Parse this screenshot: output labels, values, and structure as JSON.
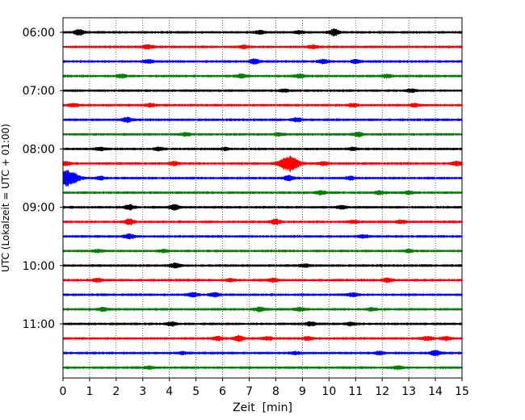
{
  "chart_data": {
    "type": "line",
    "title": "",
    "xlabel": "Zeit  [min]",
    "ylabel": "UTC (Lokalzeit = UTC + 01:00)",
    "xlim": [
      0,
      15
    ],
    "x_ticks": [
      0,
      1,
      2,
      3,
      4,
      5,
      6,
      7,
      8,
      9,
      10,
      11,
      12,
      13,
      14,
      15
    ],
    "x_tick_labels": [
      "0",
      "1",
      "2",
      "3",
      "4",
      "5",
      "6",
      "7",
      "8",
      "9",
      "10",
      "11",
      "12",
      "13",
      "14",
      "15"
    ],
    "y_tick_labels": [
      "06:00",
      "07:00",
      "08:00",
      "09:00",
      "10:00",
      "11:00"
    ],
    "grid": "vertical dotted at each minute",
    "trace_colors": [
      "#000000",
      "#ff0000",
      "#0000ff",
      "#008000"
    ],
    "trace_minutes": 15,
    "traces": [
      {
        "start": "06:00",
        "color": "#000000",
        "events": [
          {
            "t": 0.6,
            "amp": 0.5
          },
          {
            "t": 10.2,
            "amp": 0.6
          },
          {
            "t": 7.4,
            "amp": 0.3
          },
          {
            "t": 8.9,
            "amp": 0.25
          }
        ]
      },
      {
        "start": "06:15",
        "color": "#ff0000",
        "events": [
          {
            "t": 3.2,
            "amp": 0.35
          },
          {
            "t": 9.4,
            "amp": 0.3
          },
          {
            "t": 6.8,
            "amp": 0.25
          }
        ]
      },
      {
        "start": "06:30",
        "color": "#0000ff",
        "events": [
          {
            "t": 3.2,
            "amp": 0.3
          },
          {
            "t": 7.2,
            "amp": 0.45
          },
          {
            "t": 9.8,
            "amp": 0.35
          },
          {
            "t": 11.0,
            "amp": 0.3
          }
        ]
      },
      {
        "start": "06:45",
        "color": "#008000",
        "events": [
          {
            "t": 2.2,
            "amp": 0.3
          },
          {
            "t": 6.7,
            "amp": 0.35
          },
          {
            "t": 8.9,
            "amp": 0.3
          },
          {
            "t": 12.2,
            "amp": 0.3
          }
        ]
      },
      {
        "start": "07:00",
        "color": "#000000",
        "events": [
          {
            "t": 8.3,
            "amp": 0.25
          },
          {
            "t": 13.1,
            "amp": 0.25
          }
        ]
      },
      {
        "start": "07:15",
        "color": "#ff0000",
        "events": [
          {
            "t": 0.4,
            "amp": 0.3
          },
          {
            "t": 3.3,
            "amp": 0.3
          },
          {
            "t": 10.9,
            "amp": 0.25
          },
          {
            "t": 13.2,
            "amp": 0.3
          }
        ]
      },
      {
        "start": "07:30",
        "color": "#0000ff",
        "events": [
          {
            "t": 2.4,
            "amp": 0.45
          },
          {
            "t": 8.8,
            "amp": 0.3
          }
        ]
      },
      {
        "start": "07:45",
        "color": "#008000",
        "events": [
          {
            "t": 4.6,
            "amp": 0.3
          },
          {
            "t": 8.1,
            "amp": 0.25
          },
          {
            "t": 11.1,
            "amp": 0.35
          }
        ]
      },
      {
        "start": "08:00",
        "color": "#000000",
        "events": [
          {
            "t": 1.4,
            "amp": 0.3
          },
          {
            "t": 3.6,
            "amp": 0.25
          },
          {
            "t": 6.1,
            "amp": 0.25
          },
          {
            "t": 10.9,
            "amp": 0.25
          }
        ]
      },
      {
        "start": "08:15",
        "color": "#ff0000",
        "events": [
          {
            "t": 8.5,
            "amp": 1.4
          },
          {
            "t": 0.1,
            "amp": 0.3
          },
          {
            "t": 4.2,
            "amp": 0.3
          },
          {
            "t": 9.8,
            "amp": 0.3
          },
          {
            "t": 14.8,
            "amp": 0.35
          }
        ]
      },
      {
        "start": "08:30",
        "color": "#0000ff",
        "events": [
          {
            "t": 0.2,
            "amp": 1.6
          },
          {
            "t": 1.4,
            "amp": 0.3
          },
          {
            "t": 8.5,
            "amp": 0.45
          },
          {
            "t": 10.8,
            "amp": 0.3
          }
        ]
      },
      {
        "start": "08:45",
        "color": "#008000",
        "events": [
          {
            "t": 9.7,
            "amp": 0.3
          },
          {
            "t": 11.9,
            "amp": 0.3
          },
          {
            "t": 13.0,
            "amp": 0.25
          }
        ]
      },
      {
        "start": "09:00",
        "color": "#000000",
        "events": [
          {
            "t": 2.5,
            "amp": 0.45
          },
          {
            "t": 4.2,
            "amp": 0.5
          },
          {
            "t": 10.5,
            "amp": 0.3
          }
        ]
      },
      {
        "start": "09:15",
        "color": "#ff0000",
        "events": [
          {
            "t": 2.5,
            "amp": 0.5
          },
          {
            "t": 8.0,
            "amp": 0.5
          },
          {
            "t": 12.7,
            "amp": 0.3
          },
          {
            "t": 10.9,
            "amp": 0.25
          }
        ]
      },
      {
        "start": "09:30",
        "color": "#0000ff",
        "events": [
          {
            "t": 2.5,
            "amp": 0.45
          },
          {
            "t": 11.3,
            "amp": 0.25
          }
        ]
      },
      {
        "start": "09:45",
        "color": "#008000",
        "events": [
          {
            "t": 1.3,
            "amp": 0.25
          },
          {
            "t": 3.8,
            "amp": 0.25
          },
          {
            "t": 13.0,
            "amp": 0.25
          }
        ]
      },
      {
        "start": "10:00",
        "color": "#000000",
        "events": [
          {
            "t": 4.2,
            "amp": 0.45
          },
          {
            "t": 9.1,
            "amp": 0.25
          }
        ]
      },
      {
        "start": "10:15",
        "color": "#ff0000",
        "events": [
          {
            "t": 1.3,
            "amp": 0.3
          },
          {
            "t": 6.3,
            "amp": 0.25
          },
          {
            "t": 7.9,
            "amp": 0.3
          },
          {
            "t": 12.2,
            "amp": 0.35
          }
        ]
      },
      {
        "start": "10:30",
        "color": "#0000ff",
        "events": [
          {
            "t": 4.9,
            "amp": 0.4
          },
          {
            "t": 5.7,
            "amp": 0.35
          },
          {
            "t": 10.9,
            "amp": 0.3
          }
        ]
      },
      {
        "start": "10:45",
        "color": "#008000",
        "events": [
          {
            "t": 1.5,
            "amp": 0.35
          },
          {
            "t": 7.4,
            "amp": 0.4
          },
          {
            "t": 8.9,
            "amp": 0.3
          },
          {
            "t": 11.6,
            "amp": 0.25
          }
        ]
      },
      {
        "start": "11:00",
        "color": "#000000",
        "events": [
          {
            "t": 4.1,
            "amp": 0.3
          },
          {
            "t": 9.3,
            "amp": 0.35
          },
          {
            "t": 10.8,
            "amp": 0.25
          }
        ]
      },
      {
        "start": "11:15",
        "color": "#ff0000",
        "events": [
          {
            "t": 6.6,
            "amp": 0.55
          },
          {
            "t": 5.8,
            "amp": 0.35
          },
          {
            "t": 7.7,
            "amp": 0.3
          },
          {
            "t": 9.2,
            "amp": 0.3
          },
          {
            "t": 13.7,
            "amp": 0.35
          },
          {
            "t": 14.4,
            "amp": 0.3
          }
        ]
      },
      {
        "start": "11:30",
        "color": "#0000ff",
        "events": [
          {
            "t": 14.0,
            "amp": 0.55
          },
          {
            "t": 4.5,
            "amp": 0.25
          },
          {
            "t": 8.7,
            "amp": 0.25
          },
          {
            "t": 11.9,
            "amp": 0.25
          }
        ]
      },
      {
        "start": "11:45",
        "color": "#008000",
        "events": [
          {
            "t": 3.2,
            "amp": 0.25
          },
          {
            "t": 12.6,
            "amp": 0.25
          }
        ]
      }
    ]
  }
}
